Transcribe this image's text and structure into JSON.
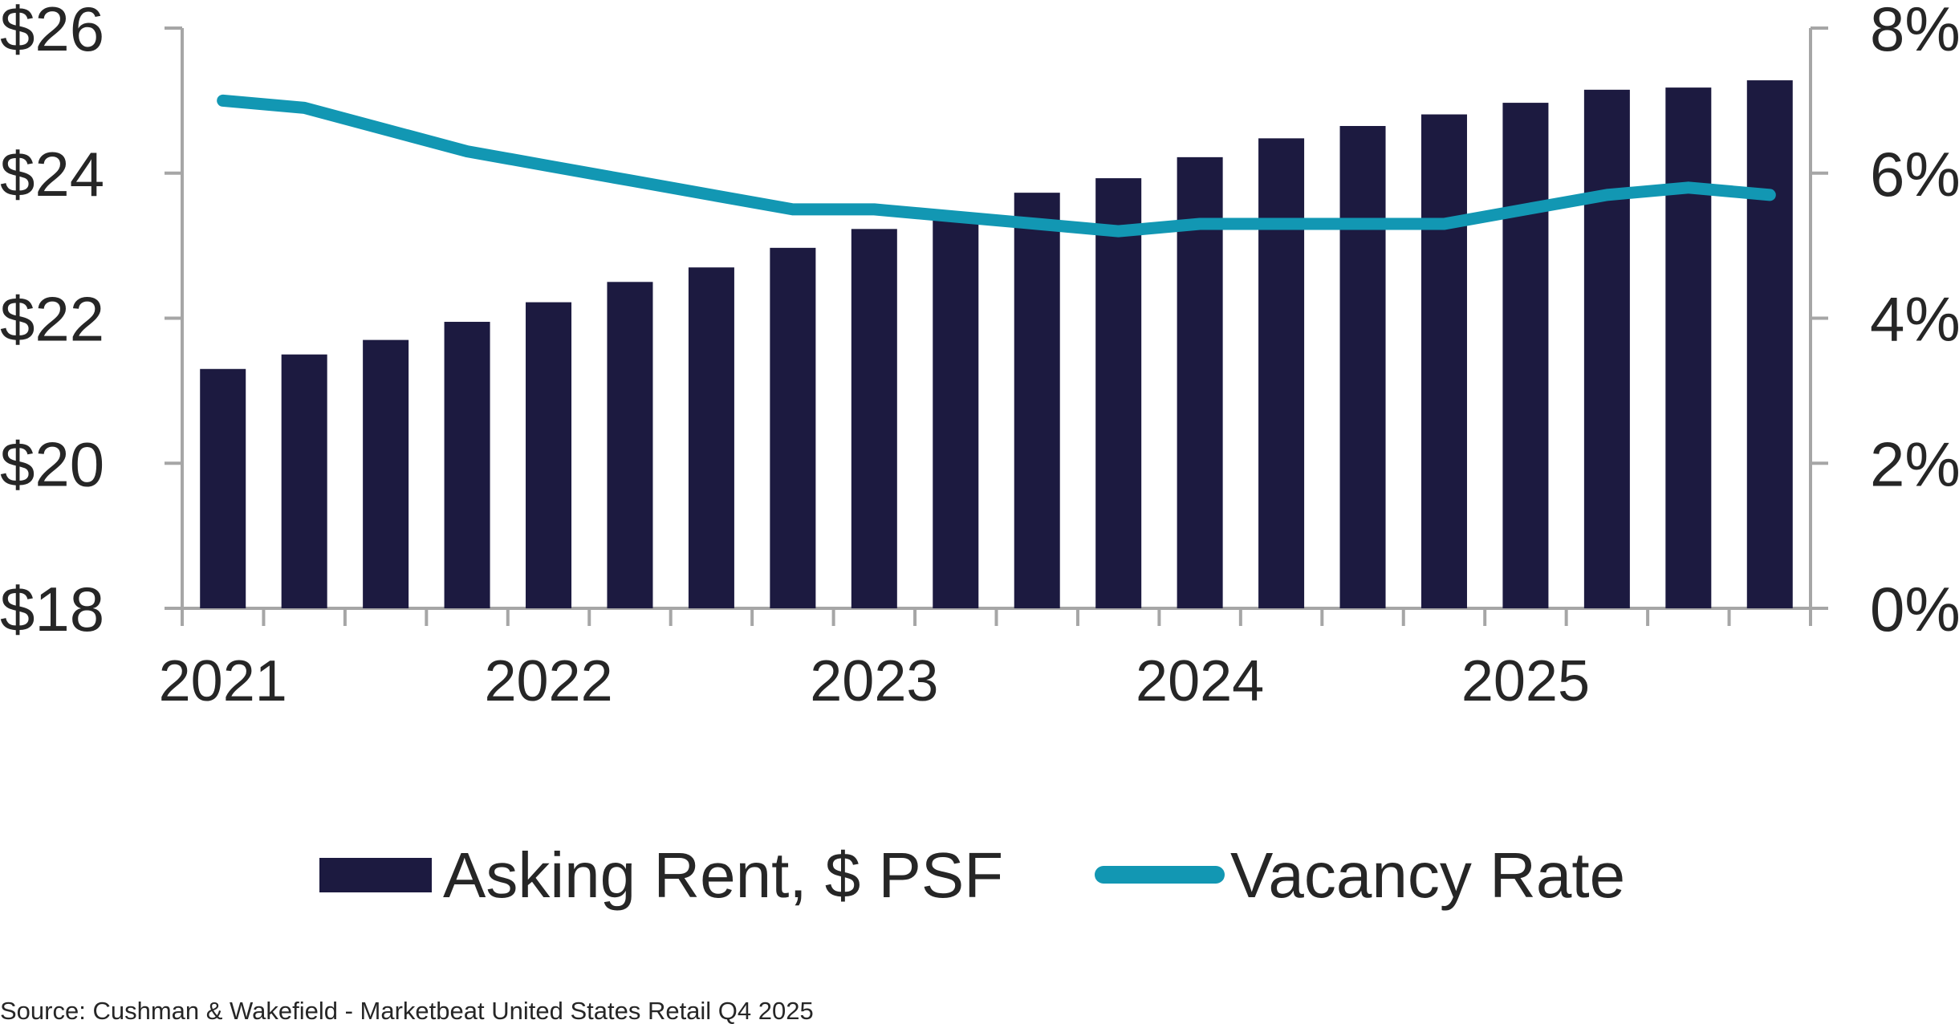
{
  "colors": {
    "bar": "#1c1a40",
    "line": "#1297b3",
    "axis": "#a6a6a6",
    "text": "#262626"
  },
  "chart_data": {
    "type": "bar",
    "title": "",
    "xlabel": "",
    "ylabel": "",
    "x_tick_labels": [
      "2021",
      "2022",
      "2023",
      "2024",
      "2025"
    ],
    "left_axis": {
      "ylim": [
        18,
        26
      ],
      "ticks": [
        "$18",
        "$20",
        "$22",
        "$24",
        "$26"
      ]
    },
    "right_axis": {
      "ylim": [
        0,
        8
      ],
      "ticks": [
        "0%",
        "2%",
        "4%",
        "6%",
        "8%"
      ]
    },
    "grid": false,
    "legend_position": "bottom",
    "series": [
      {
        "name": "Asking Rent, $ PSF",
        "type": "bar",
        "axis": "left",
        "values": [
          21.3,
          21.5,
          21.7,
          21.95,
          22.22,
          22.5,
          22.7,
          22.97,
          23.23,
          23.45,
          23.73,
          23.93,
          24.22,
          24.48,
          24.65,
          24.81,
          24.97,
          25.15,
          25.18,
          25.28
        ]
      },
      {
        "name": "Vacancy Rate",
        "type": "line",
        "axis": "right",
        "values": [
          7.0,
          6.9,
          6.6,
          6.3,
          6.1,
          5.9,
          5.7,
          5.5,
          5.5,
          5.4,
          5.3,
          5.2,
          5.3,
          5.3,
          5.3,
          5.3,
          5.5,
          5.7,
          5.8,
          5.7
        ]
      }
    ]
  },
  "source": "Source: Cushman & Wakefield - Marketbeat United States Retail Q4 2025"
}
